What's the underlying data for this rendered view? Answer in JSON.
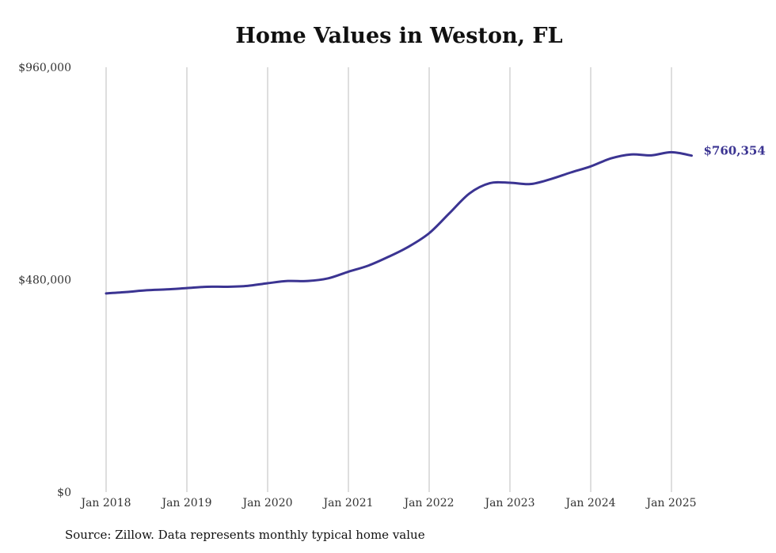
{
  "chart_data": {
    "type": "line",
    "title": "Home Values in Weston, FL",
    "xlabel": "",
    "ylabel": "",
    "x_ticks": [
      "Jan 2018",
      "Jan 2019",
      "Jan 2020",
      "Jan 2021",
      "Jan 2022",
      "Jan 2023",
      "Jan 2024",
      "Jan 2025"
    ],
    "y_ticks": [
      "$0",
      "$480,000",
      "$960,000"
    ],
    "ylim": [
      0,
      960000
    ],
    "xlim": [
      "2018-01",
      "2025-04"
    ],
    "grid": "vertical",
    "series": [
      {
        "color": "#3b3492",
        "end_label": "$760,354",
        "points": [
          [
            "2018-01",
            449000
          ],
          [
            "2018-04",
            452000
          ],
          [
            "2018-07",
            456000
          ],
          [
            "2018-10",
            458000
          ],
          [
            "2019-01",
            461000
          ],
          [
            "2019-04",
            464000
          ],
          [
            "2019-07",
            464000
          ],
          [
            "2019-10",
            466000
          ],
          [
            "2020-01",
            472000
          ],
          [
            "2020-04",
            477000
          ],
          [
            "2020-07",
            477000
          ],
          [
            "2020-10",
            483000
          ],
          [
            "2021-01",
            498000
          ],
          [
            "2021-04",
            512000
          ],
          [
            "2021-07",
            532000
          ],
          [
            "2021-10",
            555000
          ],
          [
            "2022-01",
            585000
          ],
          [
            "2022-04",
            630000
          ],
          [
            "2022-07",
            675000
          ],
          [
            "2022-10",
            698000
          ],
          [
            "2023-01",
            699000
          ],
          [
            "2023-04",
            696000
          ],
          [
            "2023-07",
            707000
          ],
          [
            "2023-10",
            722000
          ],
          [
            "2024-01",
            736000
          ],
          [
            "2024-04",
            754000
          ],
          [
            "2024-07",
            763000
          ],
          [
            "2024-10",
            761000
          ],
          [
            "2025-01",
            768000
          ],
          [
            "2025-04",
            760354
          ]
        ]
      }
    ]
  },
  "footer": {
    "source": "Source: Zillow. Data represents monthly typical home value"
  }
}
